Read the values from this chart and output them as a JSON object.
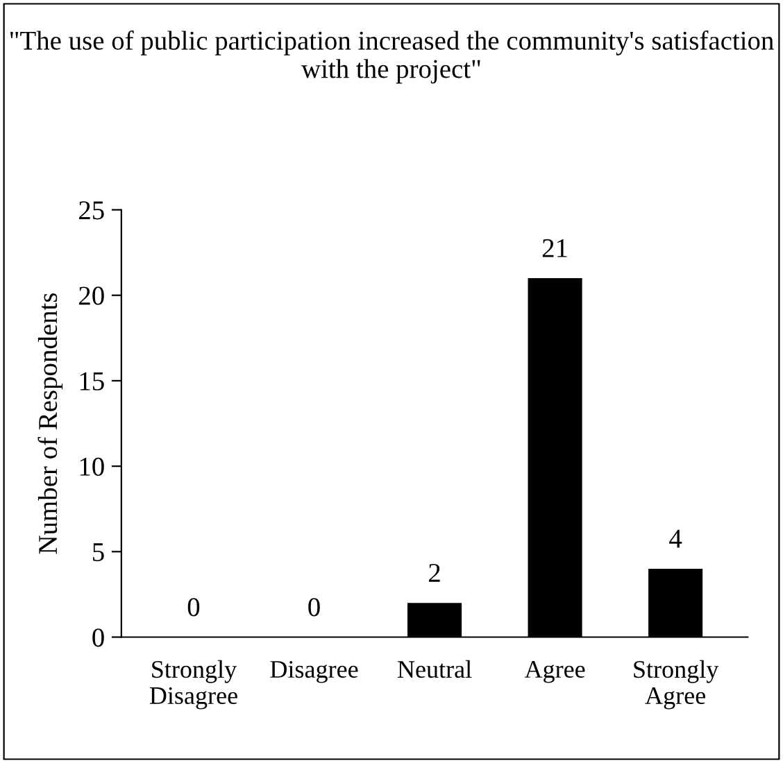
{
  "chart_data": {
    "type": "bar",
    "title": "\"The use of public participation increased the community's satisfaction with the project\"",
    "ylabel": "Number of Respondents",
    "categories": [
      "Strongly\nDisagree",
      "Disagree",
      "Neutral",
      "Agree",
      "Strongly\nAgree"
    ],
    "values": [
      0,
      0,
      2,
      21,
      4
    ],
    "color": "#000000",
    "ylim": [
      0,
      25
    ],
    "yticks": [
      0,
      5,
      10,
      15,
      20,
      25
    ],
    "data_labels": true,
    "grid": false,
    "legend": false
  }
}
